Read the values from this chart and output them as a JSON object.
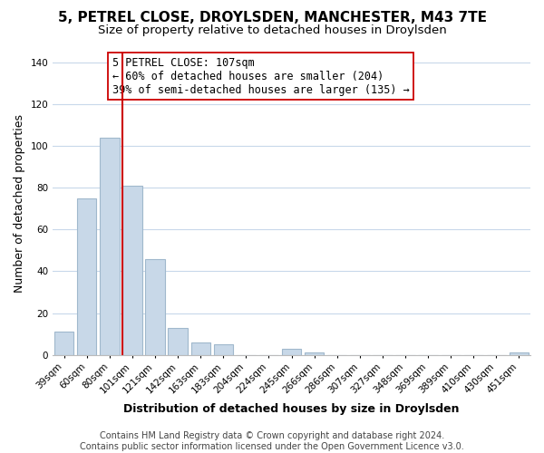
{
  "title_line1": "5, PETREL CLOSE, DROYLSDEN, MANCHESTER, M43 7TE",
  "title_line2": "Size of property relative to detached houses in Droylsden",
  "xlabel": "Distribution of detached houses by size in Droylsden",
  "ylabel": "Number of detached properties",
  "categories": [
    "39sqm",
    "60sqm",
    "80sqm",
    "101sqm",
    "121sqm",
    "142sqm",
    "163sqm",
    "183sqm",
    "204sqm",
    "224sqm",
    "245sqm",
    "266sqm",
    "286sqm",
    "307sqm",
    "327sqm",
    "348sqm",
    "369sqm",
    "389sqm",
    "410sqm",
    "430sqm",
    "451sqm"
  ],
  "values": [
    11,
    75,
    104,
    81,
    46,
    13,
    6,
    5,
    0,
    0,
    3,
    1,
    0,
    0,
    0,
    0,
    0,
    0,
    0,
    0,
    1
  ],
  "bar_color": "#c8d8e8",
  "bar_edge_color": "#a0b8cc",
  "highlight_line_index": 3,
  "highlight_line_color": "#cc0000",
  "annotation_line1": "5 PETREL CLOSE: 107sqm",
  "annotation_line2": "← 60% of detached houses are smaller (204)",
  "annotation_line3": "39% of semi-detached houses are larger (135) →",
  "ylim": [
    0,
    145
  ],
  "yticks": [
    0,
    20,
    40,
    60,
    80,
    100,
    120,
    140
  ],
  "footer_line1": "Contains HM Land Registry data © Crown copyright and database right 2024.",
  "footer_line2": "Contains public sector information licensed under the Open Government Licence v3.0.",
  "bg_color": "#ffffff",
  "grid_color": "#c8d8ea",
  "title_fontsize": 11,
  "subtitle_fontsize": 9.5,
  "axis_label_fontsize": 9,
  "tick_fontsize": 7.5,
  "footer_fontsize": 7,
  "ann_fontsize": 8.5
}
